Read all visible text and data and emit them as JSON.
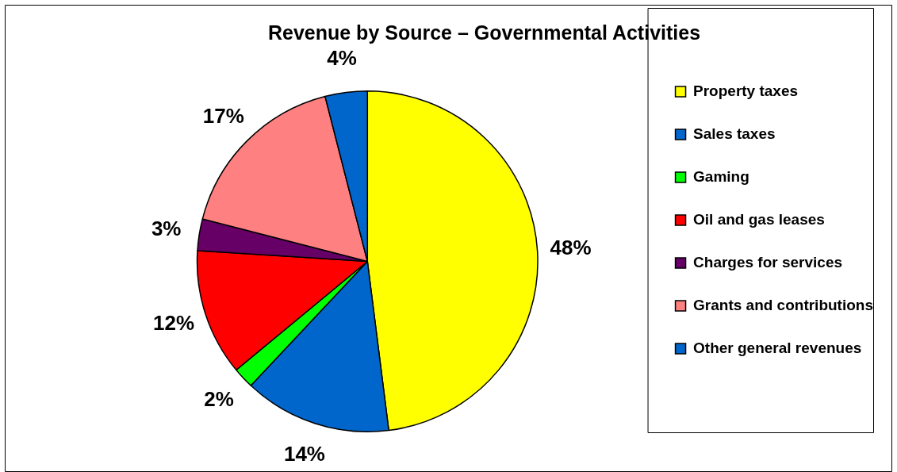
{
  "chart_data": {
    "type": "pie",
    "title": "Revenue by Source – Governmental Activities",
    "categories": [
      "Property taxes",
      "Sales taxes",
      "Gaming",
      "Oil and gas leases",
      "Charges for services",
      "Grants and contributions",
      "Other general revenues"
    ],
    "values": [
      48,
      14,
      2,
      12,
      3,
      17,
      4
    ],
    "value_labels": [
      "48%",
      "14%",
      "2%",
      "12%",
      "3%",
      "17%",
      "4%"
    ],
    "colors": [
      "#ffff00",
      "#0066cc",
      "#00ff00",
      "#ff0000",
      "#660066",
      "#ff8080",
      "#0066cc"
    ],
    "legend": "right"
  }
}
